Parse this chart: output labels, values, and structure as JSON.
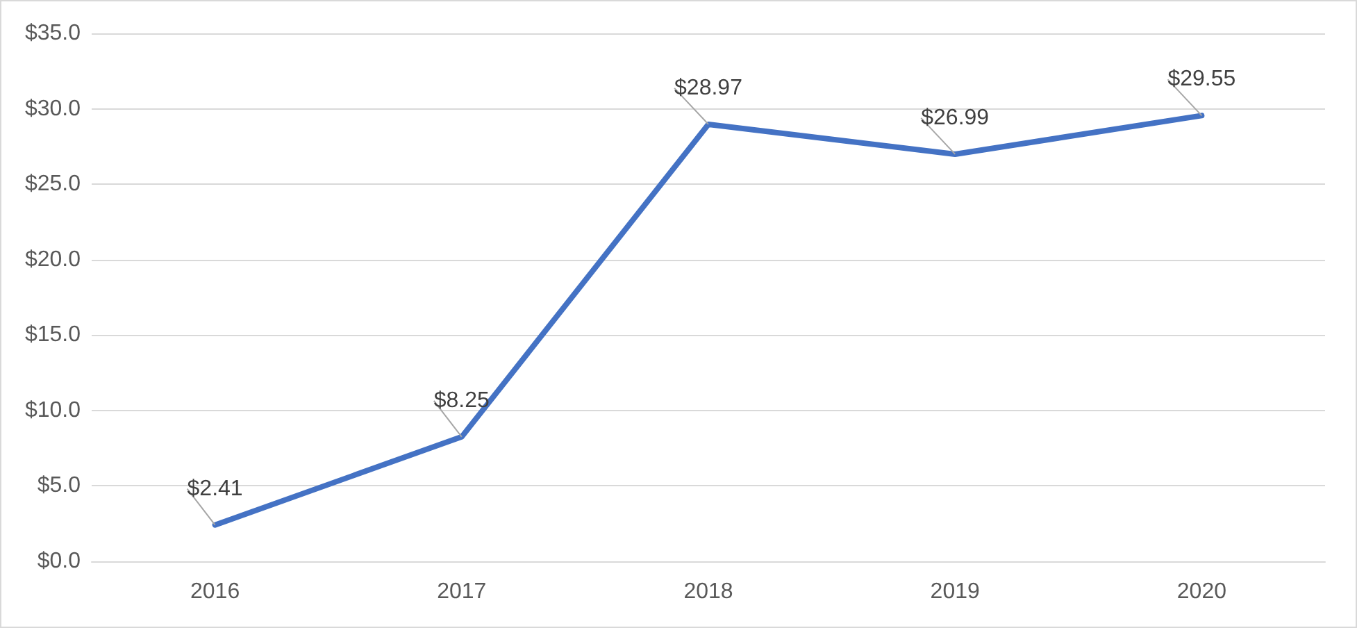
{
  "chart_data": {
    "type": "line",
    "categories": [
      "2016",
      "2017",
      "2018",
      "2019",
      "2020"
    ],
    "series": [
      {
        "color": "#4472c4",
        "values": [
          2.41,
          8.25,
          28.97,
          26.99,
          29.55
        ],
        "value_labels": [
          "$2.41",
          "$8.25",
          "$28.97",
          "$26.99",
          "$29.55"
        ]
      }
    ],
    "ylim": [
      0,
      35
    ],
    "yticks": [
      {
        "value": 0,
        "label": "$0.0"
      },
      {
        "value": 5,
        "label": "$5.0"
      },
      {
        "value": 10,
        "label": "$10.0"
      },
      {
        "value": 15,
        "label": "$15.0"
      },
      {
        "value": 20,
        "label": "$20.0"
      },
      {
        "value": 25,
        "label": "$25.0"
      },
      {
        "value": 30,
        "label": "$30.0"
      },
      {
        "value": 35,
        "label": "$35.0"
      }
    ],
    "grid": "y",
    "marker": "none",
    "line_style": "solid"
  }
}
